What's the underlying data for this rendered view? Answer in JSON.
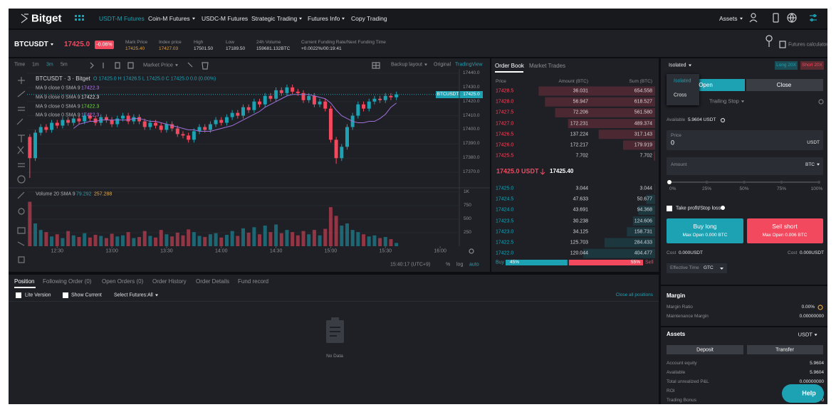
{
  "nav": {
    "logo": "Bitget",
    "items": [
      "USDT-M Futures",
      "Coin-M Futures",
      "USDC-M Futures",
      "Strategic Trading",
      "Futures Info",
      "Copy Trading"
    ],
    "assets": "Assets"
  },
  "ticker": {
    "symbol": "BTCUSDT",
    "price": "17425.0",
    "change": "-0.06%",
    "stats": [
      {
        "label": "Mark Price",
        "value": "17425.40"
      },
      {
        "label": "Index price",
        "value": "17427.03"
      },
      {
        "label": "High",
        "value": "17501.50"
      },
      {
        "label": "Low",
        "value": "17189.50"
      },
      {
        "label": "24h Volume",
        "value": "159681.132BTC"
      },
      {
        "label": "Current Funding Rate/Next Funding Time",
        "value": "+0.0022%/00:19:41"
      }
    ],
    "calculator": "Futures calculator"
  },
  "chart": {
    "toolbar": {
      "time": "Time",
      "intervals": [
        "1m",
        "3m",
        "5m"
      ],
      "market_price": "Market Price",
      "backup_layout": "Backup layout",
      "original": "Original",
      "tradingview": "TradingView"
    },
    "legend": {
      "title": "BTCUSDT · 3 · Bitget",
      "ohlc": "O 17425.0 H 17426.5 L 17425.0 C 17425.0 0.0 (0.00%)",
      "ma": [
        {
          "name": "MA 9 close 0 SMA 9",
          "value": "17422.3"
        },
        {
          "name": "MA 9 close 0 SMA 9",
          "value": "17422.3"
        },
        {
          "name": "MA 9 close 0 SMA 9",
          "value": "17422.3"
        },
        {
          "name": "MA 9 close 0 SMA 9",
          "value": "17422.3"
        }
      ],
      "volume": {
        "name": "Volume 20 SMA 9",
        "value": "79.292",
        "sma": "257.288"
      }
    },
    "ylim": [
      17360,
      17443
    ],
    "yticks": [
      {
        "value": 17440,
        "label": "17440.0"
      },
      {
        "value": 17430,
        "label": "17430.0"
      },
      {
        "value": 17420,
        "label": "17420.0"
      },
      {
        "value": 17410,
        "label": "17410.0"
      },
      {
        "value": 17400,
        "label": "17400.0"
      },
      {
        "value": 17390,
        "label": "17390.0"
      },
      {
        "value": 17380,
        "label": "17380.0"
      },
      {
        "value": 17370,
        "label": "17370.0"
      }
    ],
    "last_price": {
      "symbol": "BTCUSDT",
      "value": 17425,
      "label": "17425.0"
    },
    "xlim": [
      -0.5,
      78.5
    ],
    "xticks": [
      {
        "value": 5,
        "label": "12:30"
      },
      {
        "value": 15,
        "label": "13:00"
      },
      {
        "value": 25,
        "label": "13:30"
      },
      {
        "value": 35,
        "label": "14:00"
      },
      {
        "value": 45,
        "label": "14:30"
      },
      {
        "value": 55,
        "label": "15:00"
      },
      {
        "value": 65,
        "label": "15:30"
      },
      {
        "value": 75,
        "label": "16:00"
      }
    ],
    "candles": {
      "up_color": "#1da2b4",
      "down_color": "#f2495e",
      "open": [
        17395,
        17380,
        17398,
        17402,
        17400,
        17405,
        17403,
        17407,
        17405,
        17408,
        17406,
        17410,
        17408,
        17405,
        17409,
        17407,
        17404,
        17408,
        17410,
        17406,
        17409,
        17406,
        17402,
        17405,
        17403,
        17400,
        17404,
        17401,
        17397,
        17396,
        17393,
        17399,
        17402,
        17400,
        17404,
        17407,
        17405,
        17409,
        17412,
        17410,
        17416,
        17414,
        17420,
        17418,
        17424,
        17422,
        17428,
        17426,
        17430,
        17427,
        17426,
        17421,
        17424,
        17418,
        17420,
        17415,
        17393,
        17380,
        17388,
        17402,
        17410,
        17418,
        17415,
        17420,
        17422,
        17421,
        17424,
        17423
      ],
      "high": [
        17397,
        17400,
        17404,
        17404,
        17407,
        17407,
        17409,
        17409,
        17410,
        17410,
        17412,
        17412,
        17410,
        17411,
        17411,
        17409,
        17410,
        17412,
        17412,
        17411,
        17411,
        17408,
        17407,
        17407,
        17405,
        17406,
        17406,
        17403,
        17399,
        17398,
        17401,
        17404,
        17404,
        17406,
        17409,
        17409,
        17411,
        17414,
        17414,
        17418,
        17418,
        17422,
        17422,
        17426,
        17426,
        17430,
        17430,
        17432,
        17432,
        17429,
        17428,
        17426,
        17426,
        17422,
        17422,
        17417,
        17395,
        17390,
        17404,
        17412,
        17420,
        17420,
        17422,
        17424,
        17424,
        17426,
        17426,
        17427
      ],
      "low": [
        17366,
        17378,
        17396,
        17398,
        17398,
        17401,
        17401,
        17403,
        17403,
        17404,
        17404,
        17406,
        17403,
        17403,
        17405,
        17402,
        17402,
        17406,
        17404,
        17404,
        17404,
        17400,
        17400,
        17401,
        17398,
        17398,
        17399,
        17395,
        17394,
        17391,
        17391,
        17397,
        17398,
        17398,
        17402,
        17403,
        17403,
        17407,
        17408,
        17408,
        17412,
        17412,
        17416,
        17416,
        17420,
        17420,
        17424,
        17424,
        17425,
        17424,
        17419,
        17419,
        17416,
        17416,
        17413,
        17391,
        17376,
        17378,
        17386,
        17400,
        17408,
        17413,
        17413,
        17418,
        17419,
        17419,
        17421,
        17421
      ],
      "close": [
        17380,
        17398,
        17402,
        17400,
        17405,
        17403,
        17407,
        17405,
        17408,
        17406,
        17410,
        17408,
        17405,
        17409,
        17407,
        17404,
        17408,
        17410,
        17406,
        17409,
        17406,
        17402,
        17405,
        17403,
        17400,
        17404,
        17401,
        17397,
        17396,
        17393,
        17399,
        17402,
        17400,
        17404,
        17407,
        17405,
        17409,
        17412,
        17410,
        17416,
        17414,
        17420,
        17418,
        17424,
        17422,
        17428,
        17426,
        17430,
        17427,
        17426,
        17421,
        17424,
        17418,
        17420,
        17415,
        17393,
        17380,
        17388,
        17402,
        17410,
        17418,
        17415,
        17420,
        17422,
        17421,
        17424,
        17423,
        17425
      ]
    },
    "ma": {
      "color": "#a070d8",
      "values": [
        null,
        null,
        null,
        null,
        null,
        null,
        null,
        null,
        17401,
        17404,
        17405,
        17406,
        17406,
        17407,
        17407,
        17407,
        17407,
        17407,
        17407,
        17408,
        17408,
        17407,
        17406,
        17406,
        17405,
        17404,
        17403,
        17402,
        17401,
        17400,
        17400,
        17399,
        17399,
        17399,
        17400,
        17401,
        17402,
        17403,
        17405,
        17407,
        17409,
        17411,
        17413,
        17416,
        17418,
        17420,
        17422,
        17424,
        17425,
        17425,
        17425,
        17425,
        17424,
        17423,
        17422,
        17419,
        17414,
        17410,
        17408,
        17406,
        17405,
        17405,
        17406,
        17406,
        17408,
        17411,
        17416,
        17419
      ]
    },
    "volume": {
      "ylim": [
        0,
        1050
      ],
      "yticks": [
        {
          "value": 1000,
          "label": "1K"
        },
        750,
        500,
        250
      ],
      "values": [
        820,
        420,
        300,
        260,
        180,
        220,
        150,
        280,
        200,
        170,
        240,
        160,
        210,
        190,
        150,
        230,
        180,
        200,
        260,
        150,
        170,
        280,
        190,
        160,
        300,
        220,
        180,
        250,
        200,
        310,
        260,
        190,
        170,
        220,
        240,
        160,
        210,
        280,
        190,
        330,
        250,
        350,
        220,
        380,
        260,
        400,
        240,
        300,
        260,
        200,
        280,
        220,
        300,
        200,
        320,
        720,
        560,
        380,
        420,
        300,
        260,
        220,
        180,
        200,
        150,
        170,
        130,
        60
      ]
    },
    "footer": {
      "clock": "15:40:17 (UTC+9)",
      "percent": "%",
      "log": "log",
      "auto": "auto"
    }
  },
  "order_book": {
    "tabs": [
      "Order Book",
      "Market Trades"
    ],
    "columns": [
      "Price",
      "Amount (BTC)",
      "Sum (BTC)"
    ],
    "asks": [
      {
        "price": "17428.5",
        "amount": "36.031",
        "sum": 654.558
      },
      {
        "price": "17428.0",
        "amount": "56.947",
        "sum": 618.527
      },
      {
        "price": "17427.5",
        "amount": "72.206",
        "sum": 561.58,
        "sum_label": "561.580"
      },
      {
        "price": "17427.0",
        "amount": "172.231",
        "sum": 489.374
      },
      {
        "price": "17426.5",
        "amount": "137.224",
        "sum": 317.143
      },
      {
        "price": "17426.0",
        "amount": "172.217",
        "sum": 179.919
      },
      {
        "price": "17425.5",
        "amount": "7.702",
        "sum": 7.702
      }
    ],
    "mid": {
      "price": "17425.0 USDT",
      "mark": "17425.40"
    },
    "bids": [
      {
        "price": "17425.0",
        "amount": "3.044",
        "sum": 3.044
      },
      {
        "price": "17424.5",
        "amount": "47.633",
        "sum": 50.677
      },
      {
        "price": "17424.0",
        "amount": "43.691",
        "sum": 94.368
      },
      {
        "price": "17423.5",
        "amount": "30.238",
        "sum": 124.606
      },
      {
        "price": "17423.0",
        "amount": "34.125",
        "sum": 158.731
      },
      {
        "price": "17422.5",
        "amount": "125.703",
        "sum": 284.433
      },
      {
        "price": "17422.0",
        "amount": "120.044",
        "sum": 404.477
      }
    ],
    "ratio": {
      "buy_label": "Buy",
      "sell_label": "Sell",
      "buy": {
        "value": 45,
        "label": "45%"
      },
      "sell": {
        "value": 55,
        "label": "55%"
      }
    }
  },
  "trade": {
    "margin_mode": "Isolated",
    "long_lev": "Long 20X",
    "short_lev": "Short 20X",
    "mode_options": [
      "Isolated",
      "Cross"
    ],
    "tabs": [
      "Open",
      "Close"
    ],
    "trailing": "Trailing Stop",
    "available_label": "Available",
    "available": "5.9604 USDT",
    "price_label": "Price",
    "price": "0",
    "price_unit": "USDT",
    "amount_label": "Amount",
    "amount_unit": "BTC",
    "slider": [
      "0%",
      "25%",
      "50%",
      "75%",
      "100%"
    ],
    "tpsl": "Take profit/Stop loss",
    "buy": {
      "label": "Buy long",
      "max": "Max Open 0.000 BTC",
      "cost_label": "Cost",
      "cost": "0.000USDT"
    },
    "sell": {
      "label": "Sell short",
      "max": "Max Open 0.006 BTC",
      "cost_label": "Cost",
      "cost": "0.000USDT"
    },
    "effective_label": "Effective Time",
    "effective": "GTC",
    "margin": {
      "title": "Margin",
      "rows": [
        {
          "label": "Margin Ratio",
          "value": "0.00%"
        },
        {
          "label": "Maintenance Margin",
          "value": "0.00000000"
        }
      ]
    },
    "assets": {
      "title": "Assets",
      "currency": "USDT",
      "deposit": "Deposit",
      "transfer": "Transfer",
      "rows": [
        {
          "label": "Account equity",
          "value": "5.9604"
        },
        {
          "label": "Available",
          "value": "5.9604"
        },
        {
          "label": "Total unrealized P&L",
          "value": "0.00000000"
        },
        {
          "label": "ROI",
          "value": ""
        },
        {
          "label": "Trading Bonus",
          "value": "0"
        }
      ]
    },
    "help": "Help"
  },
  "bottom": {
    "tabs": [
      "Position",
      "Following Order (0)",
      "Open Orders (0)",
      "Order History",
      "Order Details",
      "Fund record"
    ],
    "lite": "Lite Version",
    "show_current": "Show Current",
    "select": "Select Futures:All",
    "close_all": "Close all positions",
    "empty": "No Data"
  }
}
